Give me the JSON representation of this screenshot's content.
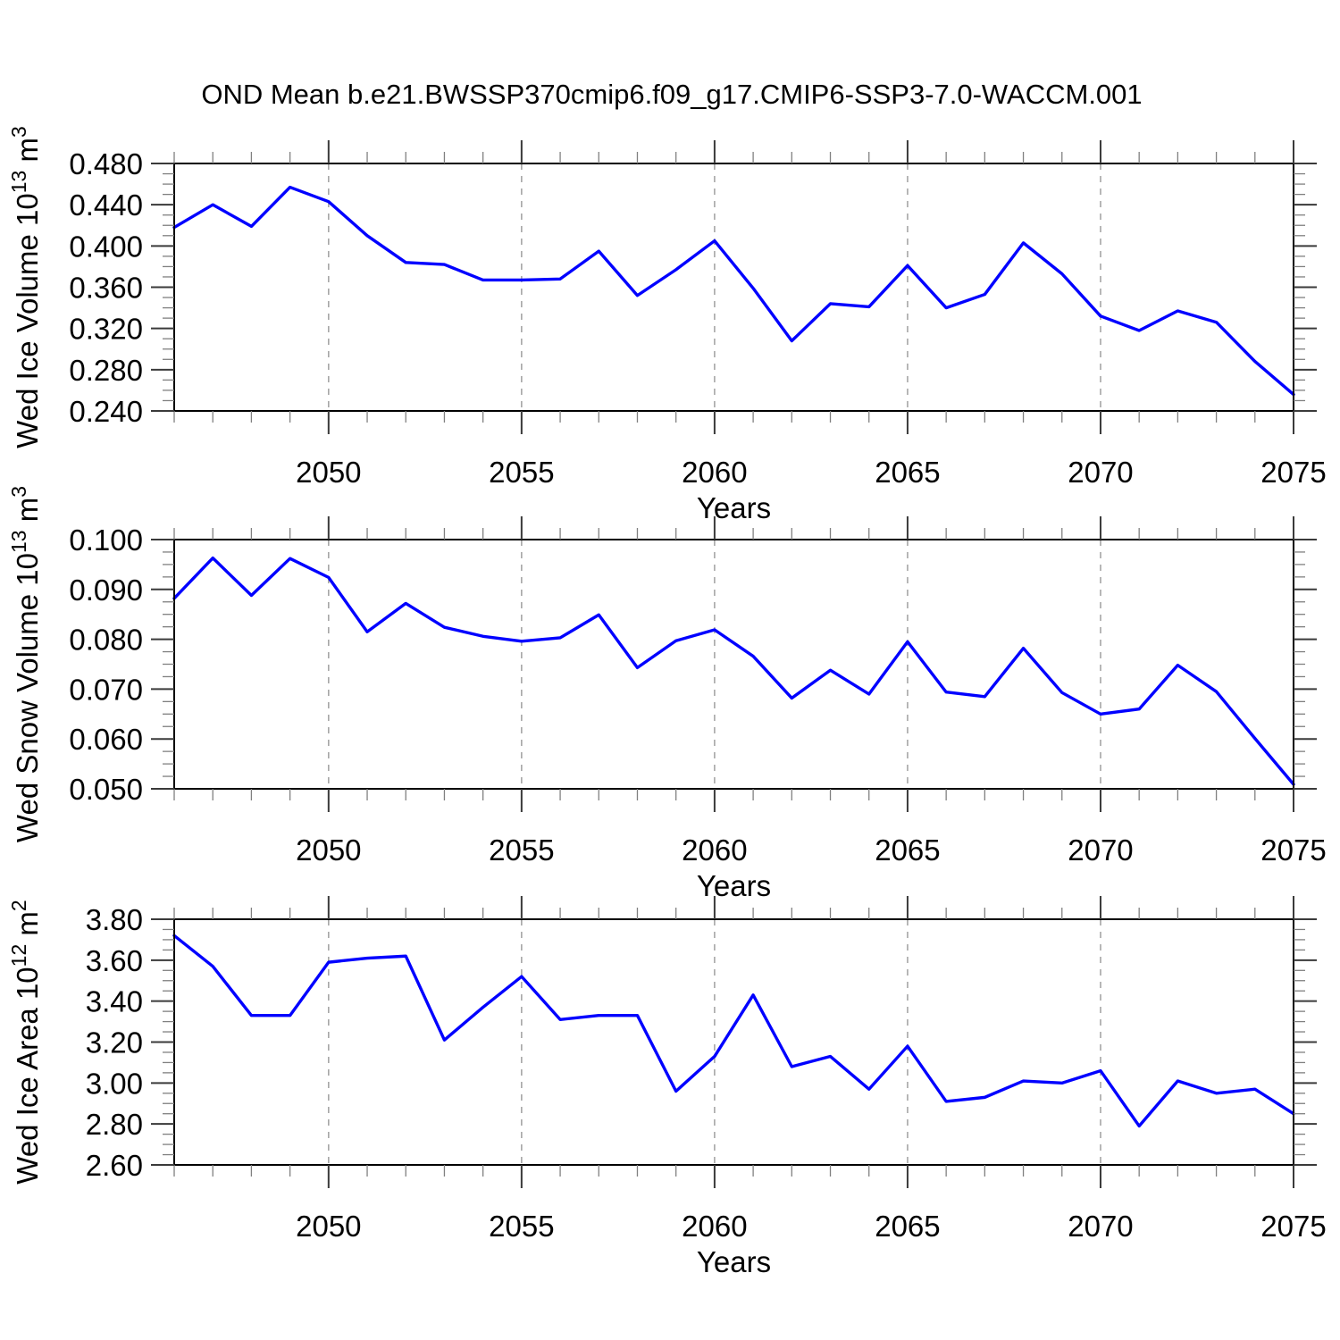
{
  "title": "OND Mean b.e21.BWSSP370cmip6.f09_g17.CMIP6-SSP3-7.0-WACCM.001",
  "x_range": [
    2046,
    2075
  ],
  "years": [
    2046,
    2047,
    2048,
    2049,
    2050,
    2051,
    2052,
    2053,
    2054,
    2055,
    2056,
    2057,
    2058,
    2059,
    2060,
    2061,
    2062,
    2063,
    2064,
    2065,
    2066,
    2067,
    2068,
    2069,
    2070,
    2071,
    2072,
    2073,
    2074,
    2075
  ],
  "x_major_ticks": [
    2050,
    2055,
    2060,
    2065,
    2070,
    2075
  ],
  "grid_years": [
    2050,
    2055,
    2060,
    2065,
    2070
  ],
  "xlabel": "Years",
  "styles": {
    "line_color": "#0000ff",
    "grid_color": "#a0a0a0",
    "frame_color": "#000000",
    "major_tick_color": "#3a3a3a",
    "minor_tick_color": "#808080",
    "text_color": "#000000"
  },
  "chart_data": [
    {
      "name": "ice-volume",
      "type": "line",
      "ylabel": "Wed Ice Volume 10^13 m^3",
      "ylabel_parts": [
        {
          "text": "Wed Ice Volume 10",
          "sup": false
        },
        {
          "text": "13",
          "sup": true
        },
        {
          "text": " m",
          "sup": false
        },
        {
          "text": "3",
          "sup": true
        }
      ],
      "ylim": [
        0.24,
        0.48
      ],
      "ytick_step": 0.04,
      "ytick_minor_step": 0.01,
      "ytick_decimals": 3,
      "values": [
        0.418,
        0.44,
        0.419,
        0.457,
        0.443,
        0.41,
        0.384,
        0.382,
        0.367,
        0.367,
        0.368,
        0.395,
        0.352,
        0.377,
        0.405,
        0.359,
        0.308,
        0.344,
        0.341,
        0.381,
        0.34,
        0.353,
        0.403,
        0.373,
        0.332,
        0.318,
        0.337,
        0.326,
        0.288,
        0.256
      ]
    },
    {
      "name": "snow-volume",
      "type": "line",
      "ylabel": "Wed Snow Volume 10^13 m^3",
      "ylabel_parts": [
        {
          "text": "Wed Snow Volume 10",
          "sup": false
        },
        {
          "text": "13",
          "sup": true
        },
        {
          "text": " m",
          "sup": false
        },
        {
          "text": "3",
          "sup": true
        }
      ],
      "ylim": [
        0.05,
        0.1
      ],
      "ytick_step": 0.01,
      "ytick_minor_step": 0.0025,
      "ytick_decimals": 3,
      "values": [
        0.0882,
        0.0963,
        0.0888,
        0.0962,
        0.0924,
        0.0815,
        0.0872,
        0.0824,
        0.0806,
        0.0796,
        0.0803,
        0.0849,
        0.0743,
        0.0797,
        0.0819,
        0.0766,
        0.0682,
        0.0738,
        0.069,
        0.0795,
        0.0694,
        0.0685,
        0.0782,
        0.0693,
        0.065,
        0.066,
        0.0748,
        0.0695,
        0.0601,
        0.0509
      ]
    },
    {
      "name": "ice-area",
      "type": "line",
      "ylabel": "Wed Ice Area 10^12 m^2",
      "ylabel_parts": [
        {
          "text": "Wed Ice Area 10",
          "sup": false
        },
        {
          "text": "12",
          "sup": true
        },
        {
          "text": " m",
          "sup": false
        },
        {
          "text": "2",
          "sup": true
        }
      ],
      "ylim": [
        2.6,
        3.8
      ],
      "ytick_step": 0.2,
      "ytick_minor_step": 0.05,
      "ytick_decimals": 2,
      "values": [
        3.72,
        3.57,
        3.33,
        3.33,
        3.59,
        3.61,
        3.62,
        3.21,
        3.37,
        3.52,
        3.31,
        3.33,
        3.33,
        2.96,
        3.13,
        3.43,
        3.08,
        3.13,
        2.97,
        3.18,
        2.91,
        2.93,
        3.01,
        3.0,
        3.06,
        2.79,
        3.01,
        2.95,
        2.97,
        2.85
      ]
    }
  ]
}
